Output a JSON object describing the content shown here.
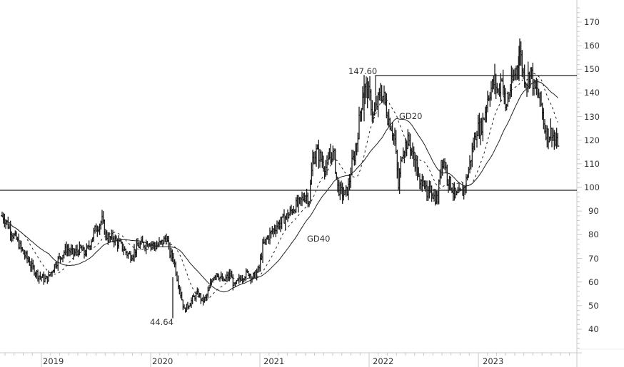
{
  "chart_data": {
    "type": "ohlc-bar",
    "title": "",
    "xlabel": "",
    "ylabel": "",
    "ylim": [
      30,
      175
    ],
    "y_ticks": [
      40,
      50,
      60,
      70,
      80,
      90,
      100,
      110,
      120,
      130,
      140,
      150,
      160,
      170
    ],
    "x_ticks": [
      "2019",
      "2020",
      "2021",
      "2022",
      "2023"
    ],
    "grid": false,
    "legend": null,
    "annotations": [
      {
        "text": "147.60",
        "kind": "high-label"
      },
      {
        "text": "44.64",
        "kind": "low-label"
      },
      {
        "text": "GD20",
        "kind": "series-label"
      },
      {
        "text": "GD40",
        "kind": "series-label"
      }
    ],
    "horizontal_lines": [
      {
        "name": "support",
        "value": 98.8
      },
      {
        "name": "resistance",
        "value": 147.6,
        "start": "2021-12"
      }
    ],
    "weekly_close": [
      88,
      86,
      83,
      80,
      78,
      75,
      72,
      70,
      67,
      65,
      63,
      62,
      61,
      62,
      65,
      68,
      70,
      72,
      74,
      73,
      72,
      73,
      74,
      72,
      74,
      78,
      82,
      84,
      86,
      80,
      78,
      79,
      77,
      76,
      74,
      72,
      71,
      73,
      75,
      76,
      76,
      77,
      76,
      75,
      76,
      77,
      79,
      72,
      70,
      62,
      55,
      48,
      50,
      52,
      54,
      55,
      52,
      53,
      57,
      62,
      64,
      62,
      60,
      62,
      63,
      58,
      60,
      62,
      63,
      64,
      62,
      63,
      66,
      75,
      78,
      80,
      82,
      84,
      85,
      87,
      88,
      90,
      92,
      93,
      95,
      97,
      95,
      112,
      115,
      113,
      110,
      108,
      115,
      113,
      100,
      98,
      97,
      100,
      110,
      115,
      128,
      140,
      142,
      138,
      130,
      135,
      140,
      138,
      130,
      126,
      120,
      100,
      115,
      118,
      120,
      113,
      110,
      100,
      105,
      95,
      100,
      96,
      95,
      112,
      110,
      103,
      100,
      96,
      97,
      98,
      103,
      110,
      118,
      125,
      125,
      130,
      138,
      142,
      145,
      140,
      148,
      133,
      140,
      145,
      150,
      158,
      148,
      145,
      150,
      142,
      140,
      135,
      125,
      122,
      124,
      118,
      120
    ],
    "series": [
      {
        "name": "GD20",
        "style": "dashed",
        "values_note": "20-period moving average"
      },
      {
        "name": "GD40",
        "style": "solid",
        "values_note": "40-period moving average"
      }
    ]
  },
  "axis": {
    "y_labels": [
      "170",
      "160",
      "150",
      "140",
      "130",
      "120",
      "110",
      "100",
      "90",
      "80",
      "70",
      "60",
      "50",
      "40"
    ],
    "x_labels": [
      "2019",
      "2020",
      "2021",
      "2022",
      "2023"
    ]
  },
  "labels": {
    "high": "147.60",
    "low": "44.64",
    "gd20": "GD20",
    "gd40": "GD40"
  },
  "colors": {
    "bars": "#1a1a1a",
    "axis": "#c8c8c8",
    "text": "#333333",
    "lines": "#222222"
  }
}
